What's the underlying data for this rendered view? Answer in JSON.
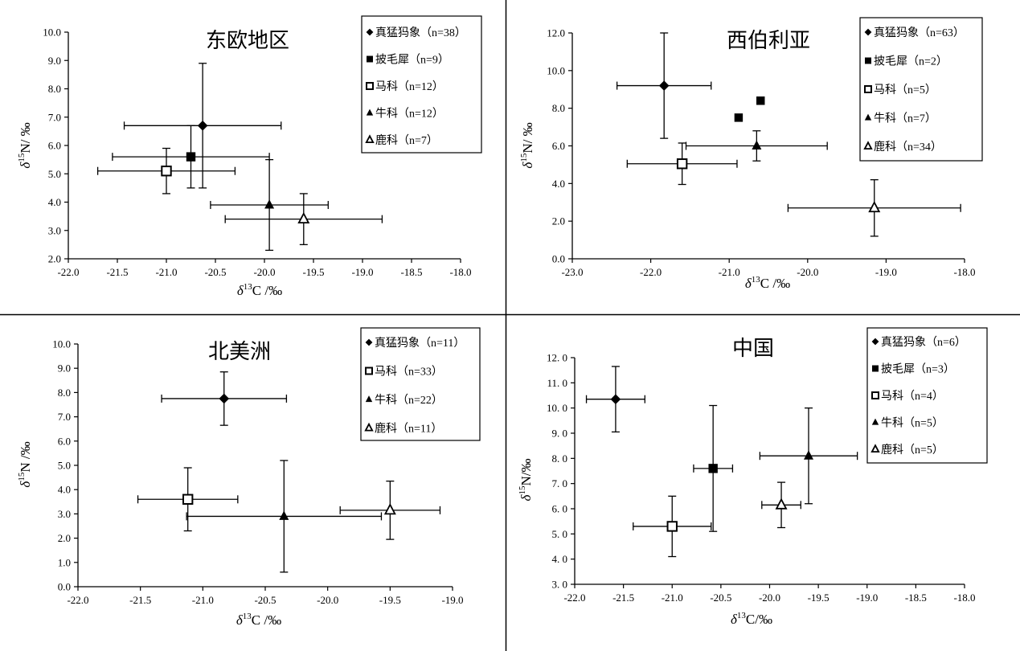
{
  "chart_data": [
    {
      "type": "scatter",
      "title": "东欧地区",
      "xlabel_prefix": "δ",
      "xlabel_sup": "13",
      "xlabel_suffix": "C /‰",
      "ylabel_prefix": "δ",
      "ylabel_sup": "15",
      "ylabel_suffix": "N/ ‰",
      "xlim": [
        -22.0,
        -18.0
      ],
      "ylim": [
        2.0,
        10.0
      ],
      "xticks": [
        "-22.0",
        "-21.5",
        "-21.0",
        "-20.5",
        "-20.0",
        "-19.5",
        "-19.0",
        "-18.5",
        "-18.0"
      ],
      "yticks": [
        "2.0",
        "3.0",
        "4.0",
        "5.0",
        "6.0",
        "7.0",
        "8.0",
        "9.0",
        "10.0"
      ],
      "legend_position": "top-right",
      "series": [
        {
          "name": "真猛犸象（n=38）",
          "marker": "diamond",
          "x": -20.63,
          "y": 6.7,
          "xerr": 0.8,
          "yerr": 2.2
        },
        {
          "name": "披毛犀（n=9）",
          "marker": "square-filled",
          "x": -20.75,
          "y": 5.6,
          "xerr": 0.8,
          "yerr": 1.1
        },
        {
          "name": "马科（n=12）",
          "marker": "square-open",
          "x": -21.0,
          "y": 5.1,
          "xerr": 0.7,
          "yerr": 0.8
        },
        {
          "name": "牛科（n=12）",
          "marker": "triangle-filled",
          "x": -19.95,
          "y": 3.9,
          "xerr": 0.6,
          "yerr": 1.6
        },
        {
          "name": "鹿科（n=7）",
          "marker": "triangle-open",
          "x": -19.6,
          "y": 3.4,
          "xerr": 0.8,
          "yerr": 0.9
        }
      ]
    },
    {
      "type": "scatter",
      "title": "西伯利亚",
      "xlabel_prefix": "δ",
      "xlabel_sup": "13",
      "xlabel_suffix": "C /‰",
      "ylabel_prefix": "δ",
      "ylabel_sup": "15",
      "ylabel_suffix": "N/ ‰",
      "xlim": [
        -23.0,
        -18.0
      ],
      "ylim": [
        0.0,
        12.0
      ],
      "xticks": [
        "-23.0",
        "-22.0",
        "-21.0",
        "-20.0",
        "-19.0",
        "-18.0"
      ],
      "yticks": [
        "0.0",
        "2.0",
        "4.0",
        "6.0",
        "8.0",
        "10.0",
        "12.0"
      ],
      "legend_position": "top-right",
      "series": [
        {
          "name": "真猛犸象（n=63）",
          "marker": "diamond",
          "x": -21.83,
          "y": 9.2,
          "xerr": 0.6,
          "yerr": 2.8
        },
        {
          "name": "披毛犀（n=2）",
          "marker": "square-filled",
          "points": [
            [
              -20.88,
              7.5
            ],
            [
              -20.6,
              8.4
            ]
          ]
        },
        {
          "name": "马科（n=5）",
          "marker": "square-open",
          "x": -21.6,
          "y": 5.05,
          "xerr": 0.7,
          "yerr": 1.1
        },
        {
          "name": "牛科（n=7）",
          "marker": "triangle-filled",
          "x": -20.65,
          "y": 6.0,
          "xerr": 0.9,
          "yerr": 0.8
        },
        {
          "name": "鹿科（n=34）",
          "marker": "triangle-open",
          "x": -19.15,
          "y": 2.7,
          "xerr": 1.1,
          "yerr": 1.5
        }
      ]
    },
    {
      "type": "scatter",
      "title": "北美洲",
      "xlabel_prefix": "δ",
      "xlabel_sup": "13",
      "xlabel_suffix": "C /‰",
      "ylabel_prefix": "δ",
      "ylabel_sup": "15",
      "ylabel_suffix": "N /‰",
      "xlim": [
        -22.0,
        -19.0
      ],
      "ylim": [
        0.0,
        10.0
      ],
      "xticks": [
        "-22.0",
        "-21.5",
        "-21.0",
        "-20.5",
        "-20.0",
        "-19.5",
        "-19.0"
      ],
      "yticks": [
        "0.0",
        "1.0",
        "2.0",
        "3.0",
        "4.0",
        "5.0",
        "6.0",
        "7.0",
        "8.0",
        "9.0",
        "10.0"
      ],
      "legend_position": "top-right",
      "series": [
        {
          "name": "真猛犸象（n=11）",
          "marker": "diamond",
          "x": -20.83,
          "y": 7.75,
          "xerr": 0.5,
          "yerr": 1.1
        },
        {
          "name": "马科（n=33）",
          "marker": "square-open",
          "x": -21.12,
          "y": 3.6,
          "xerr": 0.4,
          "yerr": 1.3
        },
        {
          "name": "牛科（n=22）",
          "marker": "triangle-filled",
          "x": -20.35,
          "y": 2.9,
          "xerr": 0.78,
          "yerr": 2.3
        },
        {
          "name": "鹿科（n=11）",
          "marker": "triangle-open",
          "x": -19.5,
          "y": 3.15,
          "xerr": 0.4,
          "yerr": 1.2
        }
      ]
    },
    {
      "type": "scatter",
      "title": "中国",
      "xlabel_prefix": "δ",
      "xlabel_sup": "13",
      "xlabel_suffix": "C/‰",
      "ylabel_prefix": "δ",
      "ylabel_sup": "15",
      "ylabel_suffix": "N/‰",
      "xlim": [
        -22.0,
        -18.0
      ],
      "ylim": [
        3.0,
        12.0
      ],
      "xticks": [
        "-22.0",
        "-21.5",
        "-21.0",
        "-20.5",
        "-20.0",
        "-19.5",
        "-19.0",
        "-18.5",
        "-18.0"
      ],
      "yticks": [
        "3. 0",
        "4. 0",
        "5. 0",
        "6. 0",
        "7. 0",
        "8. 0",
        "9. 0",
        "10. 0",
        "11. 0",
        "12. 0"
      ],
      "legend_position": "top-right",
      "series": [
        {
          "name": "真猛犸象（n=6）",
          "marker": "diamond",
          "x": -21.58,
          "y": 10.35,
          "xerr": 0.3,
          "yerr": 1.3
        },
        {
          "name": "披毛犀（n=3）",
          "marker": "square-filled",
          "x": -20.58,
          "y": 7.6,
          "xerr": 0.2,
          "yerr": 2.5
        },
        {
          "name": "马科（n=4）",
          "marker": "square-open",
          "x": -21.0,
          "y": 5.3,
          "xerr": 0.4,
          "yerr": 1.2
        },
        {
          "name": "牛科（n=5）",
          "marker": "triangle-filled",
          "x": -19.6,
          "y": 8.1,
          "xerr": 0.5,
          "yerr": 1.9
        },
        {
          "name": "鹿科（n=5）",
          "marker": "triangle-open",
          "x": -19.88,
          "y": 6.15,
          "xerr": 0.2,
          "yerr": 0.9
        }
      ]
    }
  ]
}
